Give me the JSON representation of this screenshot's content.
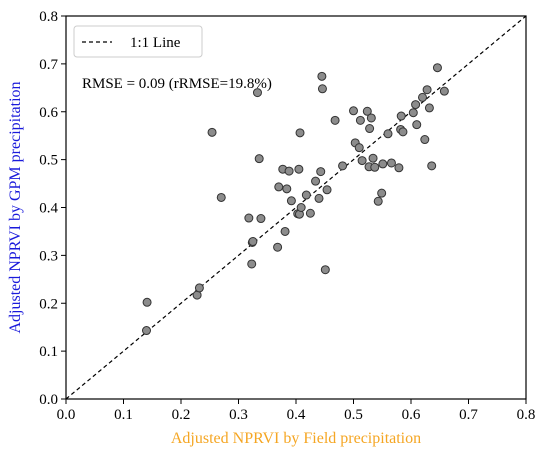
{
  "chart_data": {
    "type": "scatter",
    "xlabel": "Adjusted NPRVI by Field precipitation",
    "ylabel": "Adjusted NPRVI by GPM precipitation",
    "xlim": [
      0.0,
      0.8
    ],
    "ylim": [
      0.0,
      0.8
    ],
    "x_ticks": [
      "0.0",
      "0.1",
      "0.2",
      "0.3",
      "0.4",
      "0.5",
      "0.6",
      "0.7",
      "0.8"
    ],
    "y_ticks": [
      "0.0",
      "0.1",
      "0.2",
      "0.3",
      "0.4",
      "0.5",
      "0.6",
      "0.7",
      "0.8"
    ],
    "annotation": "RMSE = 0.09 (rRMSE=19.8%)",
    "legend": {
      "position": "top-left",
      "entries": [
        "1:1 Line"
      ]
    },
    "reference_line": {
      "name": "1:1 Line",
      "style": "dashed",
      "color": "#000000",
      "from": [
        0,
        0
      ],
      "to": [
        0.8,
        0.8
      ]
    },
    "colors": {
      "xlabel": "#f5a623",
      "ylabel": "#1a1adb",
      "points_fill": "#8c8c8c",
      "points_edge": "#333333"
    },
    "grid": false,
    "series": [
      {
        "x": [
          0.141,
          0.14,
          0.228,
          0.232,
          0.254,
          0.27,
          0.318,
          0.323,
          0.324,
          0.325,
          0.333,
          0.336,
          0.339,
          0.368,
          0.37,
          0.377,
          0.381,
          0.384,
          0.388,
          0.392,
          0.403,
          0.405,
          0.406,
          0.407,
          0.409,
          0.418,
          0.425,
          0.434,
          0.44,
          0.443,
          0.445,
          0.446,
          0.451,
          0.454,
          0.468,
          0.481,
          0.5,
          0.503,
          0.51,
          0.512,
          0.515,
          0.524,
          0.527,
          0.528,
          0.531,
          0.534,
          0.537,
          0.543,
          0.549,
          0.551,
          0.56,
          0.566,
          0.579,
          0.582,
          0.583,
          0.586,
          0.604,
          0.608,
          0.61,
          0.62,
          0.624,
          0.628,
          0.632,
          0.636,
          0.646,
          0.658
        ],
        "y": [
          0.202,
          0.143,
          0.217,
          0.232,
          0.557,
          0.421,
          0.378,
          0.282,
          0.327,
          0.329,
          0.64,
          0.502,
          0.377,
          0.317,
          0.443,
          0.48,
          0.35,
          0.439,
          0.476,
          0.414,
          0.387,
          0.48,
          0.386,
          0.556,
          0.4,
          0.426,
          0.388,
          0.455,
          0.419,
          0.475,
          0.674,
          0.648,
          0.27,
          0.437,
          0.582,
          0.487,
          0.602,
          0.535,
          0.525,
          0.582,
          0.498,
          0.601,
          0.485,
          0.565,
          0.587,
          0.503,
          0.484,
          0.413,
          0.43,
          0.491,
          0.554,
          0.493,
          0.483,
          0.563,
          0.591,
          0.558,
          0.598,
          0.615,
          0.573,
          0.63,
          0.542,
          0.646,
          0.608,
          0.487,
          0.692,
          0.643
        ]
      }
    ]
  }
}
